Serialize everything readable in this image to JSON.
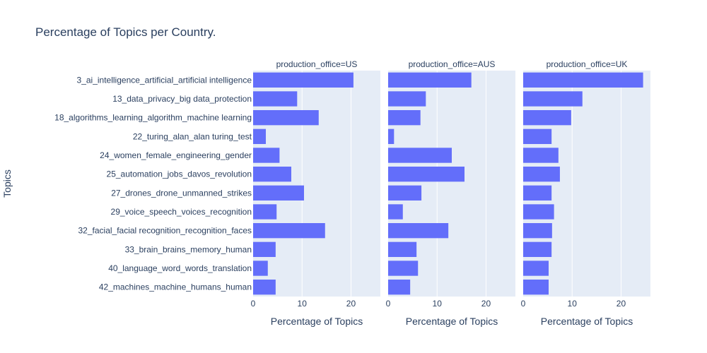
{
  "chart_data": {
    "type": "bar",
    "orientation": "horizontal",
    "title": "Percentage of Topics per Country.",
    "ylabel": "Topics",
    "xlabel": "Percentage of Topics",
    "xlim": [
      0,
      26
    ],
    "xticks": [
      0,
      10,
      20
    ],
    "bar_color": "#636efa",
    "plot_bg": "#e5ecf6",
    "grid": true,
    "categories": [
      "3_ai_intelligence_artificial_artificial intelligence",
      "13_data_privacy_big data_protection",
      "18_algorithms_learning_algorithm_machine learning",
      "22_turing_alan_alan turing_test",
      "24_women_female_engineering_gender",
      "25_automation_jobs_davos_revolution",
      "27_drones_drone_unmanned_strikes",
      "29_voice_speech_voices_recognition",
      "32_facial_facial recognition_recognition_faces",
      "33_brain_brains_memory_human",
      "40_language_word_words_translation",
      "42_machines_machine_humans_human"
    ],
    "facets": [
      {
        "title": "production_office=US",
        "values": [
          20.5,
          9.0,
          13.4,
          2.6,
          5.4,
          7.8,
          10.4,
          4.8,
          14.7,
          4.6,
          3.0,
          4.6
        ]
      },
      {
        "title": "production_office=AUS",
        "values": [
          17.0,
          7.7,
          6.6,
          1.2,
          13.0,
          15.6,
          6.8,
          3.0,
          12.3,
          5.8,
          6.1,
          4.5
        ]
      },
      {
        "title": "production_office=UK",
        "values": [
          24.5,
          12.1,
          9.8,
          5.8,
          7.2,
          7.5,
          5.8,
          6.3,
          5.9,
          5.8,
          5.2,
          5.2
        ]
      }
    ]
  }
}
